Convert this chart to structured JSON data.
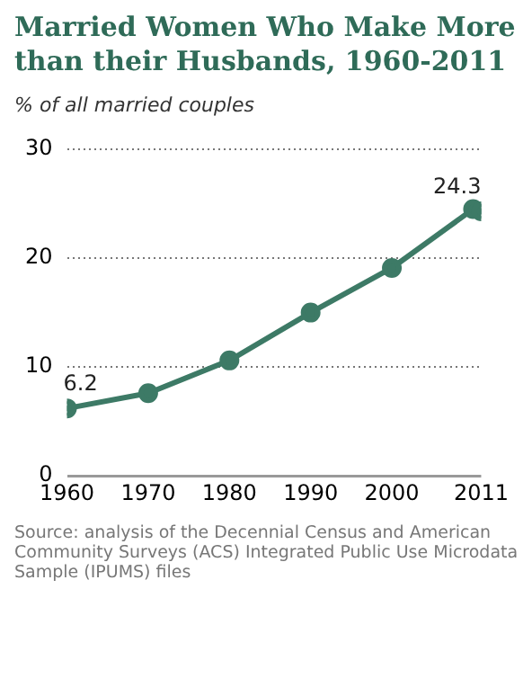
{
  "chart_data": {
    "type": "line",
    "title": "Married Women Who Make More than their Husbands, 1960-2011",
    "subtitle": "% of all married couples",
    "x": [
      1960,
      1970,
      1980,
      1990,
      2000,
      2010,
      2011
    ],
    "series": [
      {
        "color": "#3d7a66",
        "values": [
          6.2,
          7.6,
          10.6,
          15.0,
          19.1,
          24.5,
          24.3
        ]
      }
    ],
    "xlim": [
      1960,
      2011
    ],
    "xticks": [
      1960,
      1970,
      1980,
      1990,
      2000,
      2011
    ],
    "ylim": [
      0,
      30
    ],
    "yticks": [
      0,
      10,
      20,
      30
    ],
    "grid": "y",
    "legend": false,
    "marker": "circle",
    "line_style": "solid",
    "annotations": [
      {
        "text": "6.2",
        "x": 1960,
        "y": 6.2
      },
      {
        "text": "24.3",
        "x": 2011,
        "y": 24.3
      },
      "Source: analysis of the Decennial Census and American Community Surveys (ACS) Integrated Public Use Microdata Sample (IPUMS) files"
    ]
  }
}
